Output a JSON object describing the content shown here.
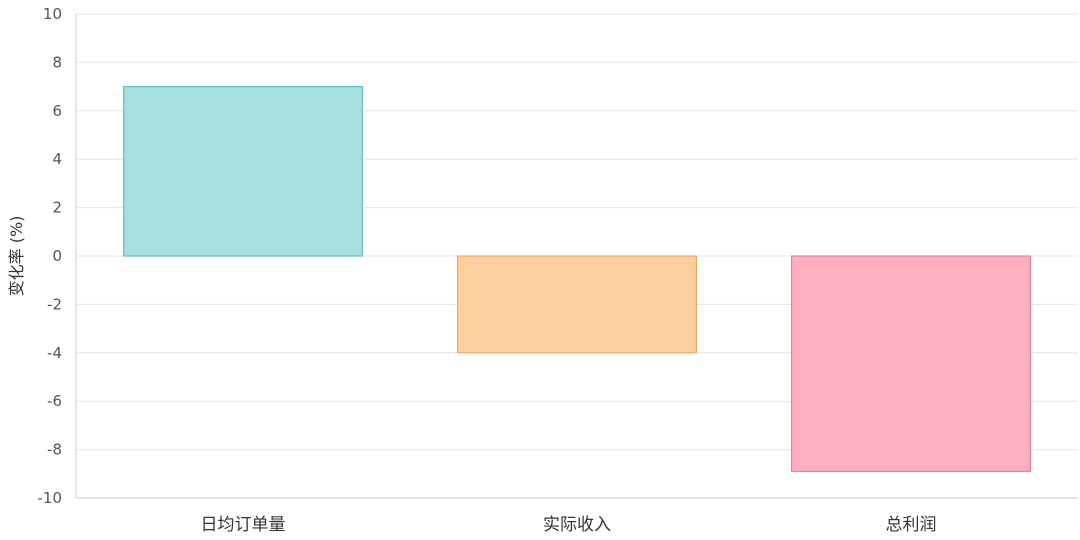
{
  "chart_data": {
    "type": "bar",
    "title": "",
    "xlabel": "",
    "ylabel": "变化率 (%)",
    "categories": [
      "日均订单量",
      "实际收入",
      "总利润"
    ],
    "values": [
      7.0,
      -4.0,
      -8.9
    ],
    "ylim": [
      -10,
      10
    ],
    "yticks": [
      10,
      8,
      6,
      4,
      2,
      0,
      -2,
      -4,
      -6,
      -8,
      -10
    ],
    "grid": true,
    "legend": "none",
    "colors": {
      "fills": [
        "#a6dfe0",
        "#fdcf9e",
        "#ffafc0"
      ],
      "strokes": [
        "#62c3bf",
        "#f2a95a",
        "#ef7f99"
      ],
      "grid": "#e6e6e6",
      "axis": "#cccccc"
    }
  }
}
